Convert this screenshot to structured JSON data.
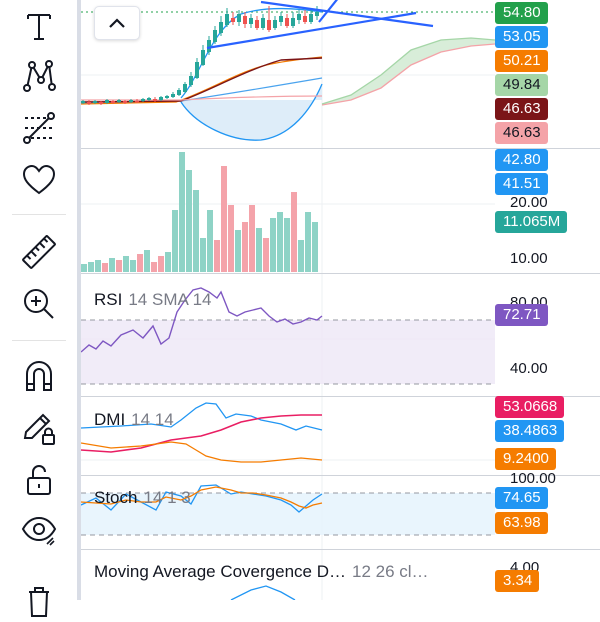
{
  "toolbar": {
    "tools": [
      {
        "name": "text-tool",
        "icon": "text-icon"
      },
      {
        "name": "pattern-tool",
        "icon": "pattern-icon"
      },
      {
        "name": "fib-tool",
        "icon": "fibonacci-icon"
      },
      {
        "name": "favorites-tool",
        "icon": "heart-icon"
      },
      {
        "name": "measure-tool",
        "icon": "ruler-icon"
      },
      {
        "name": "zoom-tool",
        "icon": "zoom-in-icon"
      },
      {
        "name": "magnet-tool",
        "icon": "magnet-icon"
      },
      {
        "name": "lock-drawing-tool",
        "icon": "pencil-lock-icon"
      },
      {
        "name": "lock-all-tool",
        "icon": "unlock-icon"
      },
      {
        "name": "visibility-tool",
        "icon": "eye-icon"
      },
      {
        "name": "trash-tool",
        "icon": "trash-icon"
      }
    ]
  },
  "main_pane": {
    "price_badges": [
      {
        "label": "54.80",
        "color": "#22a04b"
      },
      {
        "label": "53.05",
        "color": "#2196f3"
      },
      {
        "label": "50.21",
        "color": "#f57c00"
      },
      {
        "label": "49.84",
        "color": "#a5d6a7",
        "text_color": "#131722"
      },
      {
        "label": "46.63",
        "color": "#7b1518"
      },
      {
        "label": "46.63",
        "color": "#f4a3a8",
        "text_color": "#131722"
      }
    ]
  },
  "volume_pane": {
    "badges": [
      {
        "label": "42.80",
        "color": "#2196f3"
      },
      {
        "label": "41.51",
        "color": "#2196f3"
      },
      {
        "label": "11.065M",
        "color": "#26a69a"
      }
    ],
    "axis": [
      "20.00",
      "10.00"
    ]
  },
  "rsi_pane": {
    "name": "RSI",
    "params": "14 SMA 14",
    "axis": [
      "80.00",
      "40.00"
    ],
    "badge": {
      "label": "72.71",
      "color": "#7e57c2"
    }
  },
  "dmi_pane": {
    "name": "DMI",
    "params": "14 14",
    "badges": [
      {
        "label": "53.0668",
        "color": "#e91e63"
      },
      {
        "label": "38.4863",
        "color": "#2196f3"
      },
      {
        "label": "9.2400",
        "color": "#f57c00"
      }
    ]
  },
  "stoch_pane": {
    "name": "Stoch",
    "params": "14 1 3",
    "axis": [
      "100.00"
    ],
    "badges": [
      {
        "label": "74.65",
        "color": "#2196f3"
      },
      {
        "label": "63.98",
        "color": "#f57c00"
      }
    ]
  },
  "macd_pane": {
    "name": "Moving Average Covergence D…",
    "params": "12 26 cl…",
    "axis": [
      "4.00"
    ],
    "badges": [
      {
        "label": "3.34",
        "color": "#f57c00"
      }
    ]
  },
  "colors": {
    "up": "#26a69a",
    "down": "#ef5350",
    "up_volume": "#8ed3c6",
    "down_volume": "#f4a3aa",
    "rsi_line": "#7e57c2",
    "trendline": "#2962ff"
  }
}
